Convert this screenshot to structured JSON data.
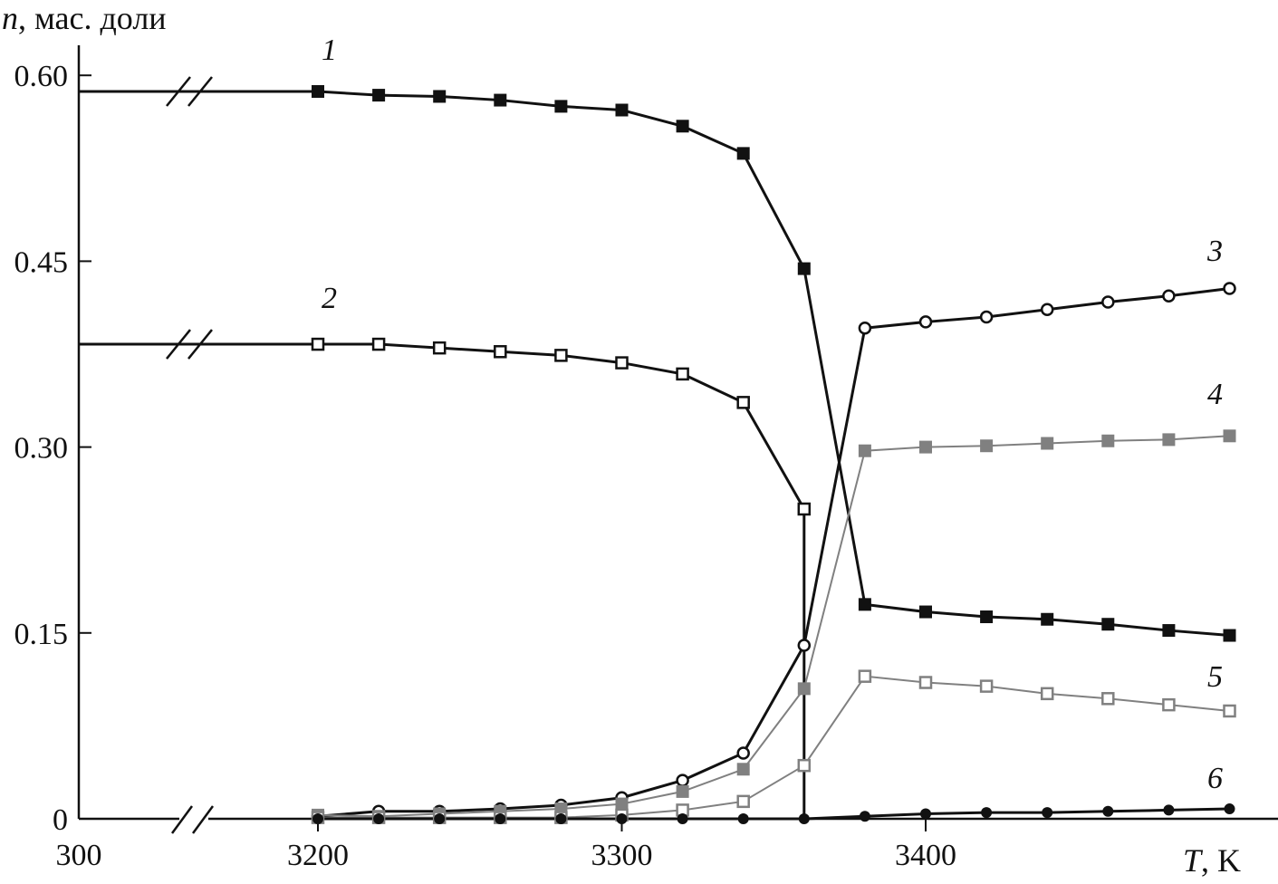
{
  "chart_data": {
    "type": "line",
    "title": "",
    "ylabel_var": "n",
    "ylabel_unit": ", мас. доли",
    "xlabel_var": "T",
    "xlabel_unit": ", K",
    "ylim": [
      0,
      0.62
    ],
    "xlim_break": {
      "left_value": 300,
      "right_start": 3200,
      "right_end": 3510
    },
    "x_tick_labels": [
      "300",
      "3200",
      "3300",
      "3400"
    ],
    "x_ticks": [
      300,
      3200,
      3300,
      3400
    ],
    "y_tick_labels": [
      "0",
      "0.15",
      "0.30",
      "0.45",
      "0.60"
    ],
    "y_ticks": [
      0,
      0.15,
      0.3,
      0.45,
      0.6
    ],
    "grid": false,
    "x": [
      3200,
      3220,
      3240,
      3260,
      3280,
      3300,
      3320,
      3340,
      3360,
      3380,
      3400,
      3420,
      3440,
      3460,
      3480,
      3500
    ],
    "series": [
      {
        "name": "1",
        "marker": "filled-square",
        "color": "#111111",
        "value_at_300": 0.587,
        "values": [
          0.587,
          0.584,
          0.583,
          0.58,
          0.575,
          0.572,
          0.559,
          0.537,
          0.444,
          0.173,
          0.167,
          0.163,
          0.161,
          0.157,
          0.152,
          0.148
        ]
      },
      {
        "name": "2",
        "marker": "open-square",
        "color": "#111111",
        "value_at_300": 0.383,
        "values": [
          0.383,
          0.383,
          0.38,
          0.377,
          0.374,
          0.368,
          0.359,
          0.336,
          0.25,
          null,
          null,
          null,
          null,
          null,
          null,
          null
        ],
        "drop_to_zero_at": 3360
      },
      {
        "name": "3",
        "marker": "open-circle",
        "color": "#111111",
        "values": [
          0.002,
          0.006,
          0.006,
          0.008,
          0.011,
          0.017,
          0.031,
          0.053,
          0.14,
          0.396,
          0.401,
          0.405,
          0.411,
          0.417,
          0.422,
          0.428
        ]
      },
      {
        "name": "4",
        "marker": "filled-square",
        "color": "#808080",
        "values": [
          0.003,
          0.002,
          0.004,
          0.006,
          0.008,
          0.012,
          0.022,
          0.04,
          0.105,
          0.297,
          0.3,
          0.301,
          0.303,
          0.305,
          0.306,
          0.309
        ]
      },
      {
        "name": "5",
        "marker": "open-square",
        "color": "#808080",
        "values": [
          0.001,
          0.001,
          0.001,
          0.001,
          0.001,
          0.003,
          0.007,
          0.014,
          0.043,
          0.115,
          0.11,
          0.107,
          0.101,
          0.097,
          0.092,
          0.087
        ]
      },
      {
        "name": "6",
        "marker": "filled-circle",
        "color": "#111111",
        "values": [
          0.0,
          0.0,
          0.0,
          0.0,
          0.0,
          0.0,
          0.0,
          0.0,
          0.0,
          0.002,
          0.004,
          0.005,
          0.005,
          0.006,
          0.007,
          0.008
        ]
      }
    ]
  }
}
